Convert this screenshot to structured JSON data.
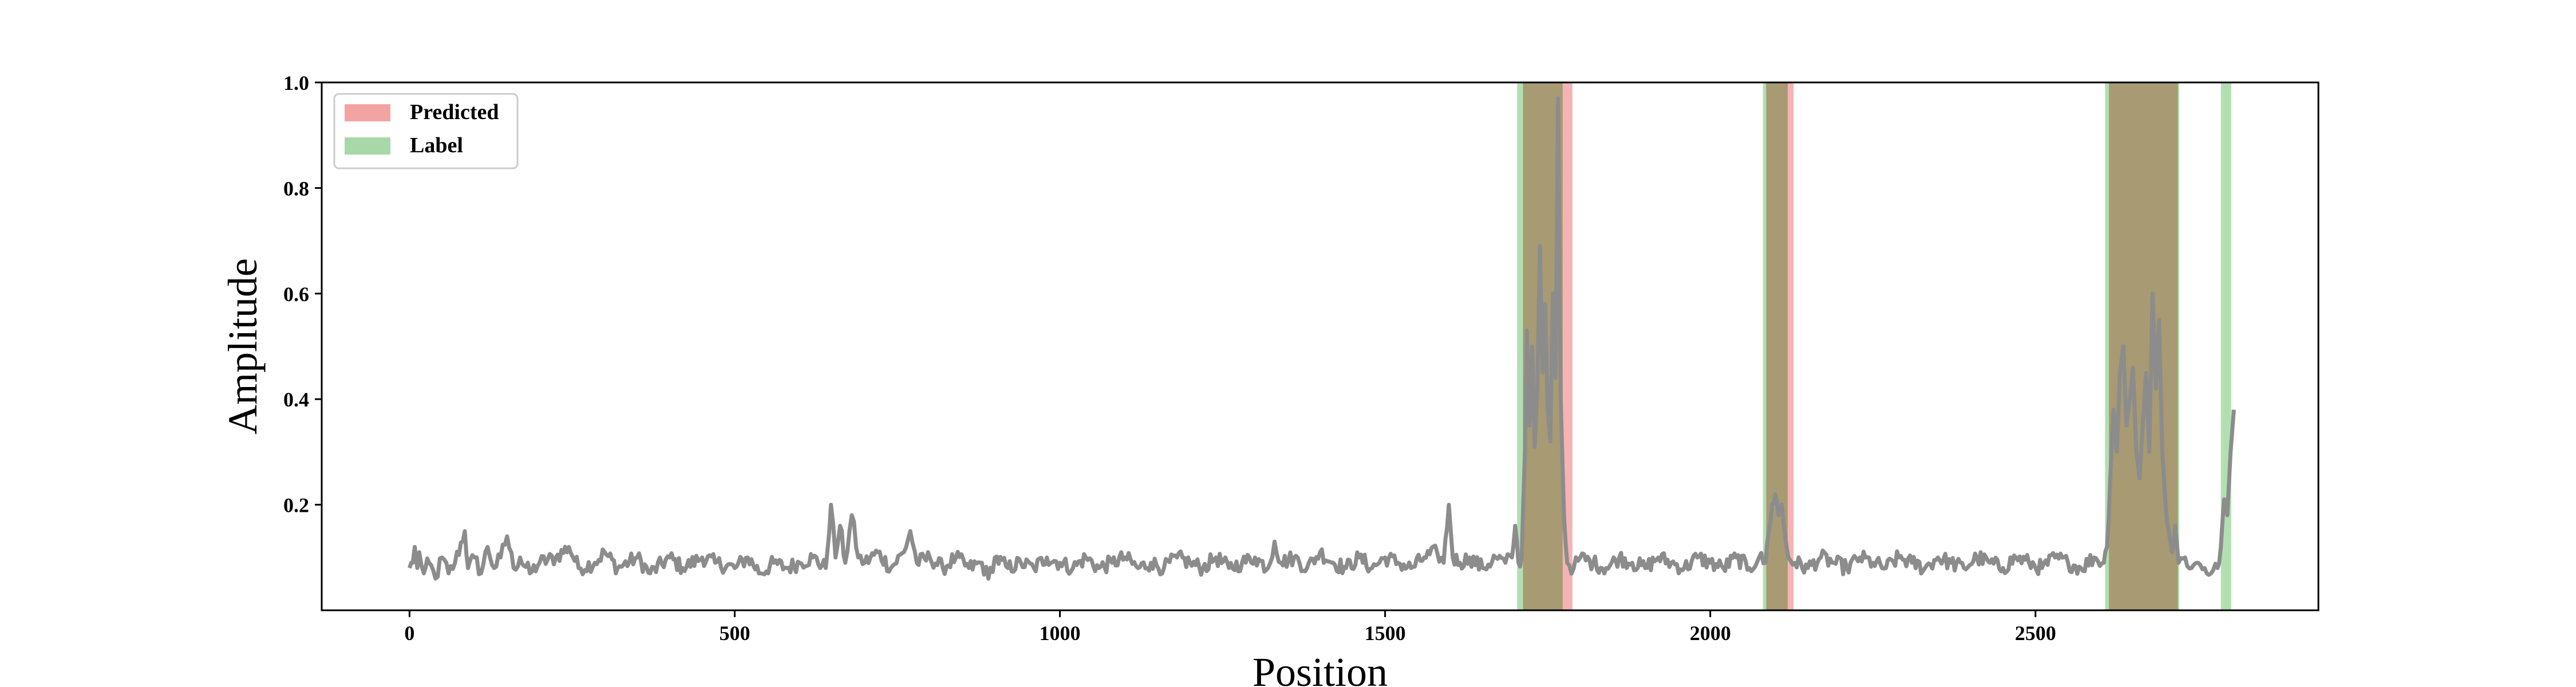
{
  "chart_data": {
    "type": "line",
    "title": "",
    "xlabel": "Position",
    "ylabel": "Amplitude",
    "xlim": [
      -135,
      2935
    ],
    "ylim": [
      0.0,
      1.0
    ],
    "x_ticks": [
      0,
      500,
      1000,
      1500,
      2000,
      2500
    ],
    "y_ticks": [
      0.2,
      0.4,
      0.6,
      0.8,
      1.0
    ],
    "y_tick_labels": [
      "0.2",
      "0.4",
      "0.6",
      "0.8",
      "1.0"
    ],
    "legend": {
      "position": "top-left",
      "entries": [
        {
          "label": "Predicted",
          "color": "#f4a3a3"
        },
        {
          "label": "Label",
          "color": "#a8d8a8"
        }
      ]
    },
    "colors": {
      "signal": "#8c8c8c",
      "predicted": "#f08080",
      "label": "#7fc97f",
      "overlap": "#a89a72",
      "axes": "#000000"
    },
    "predicted_regions": [
      [
        1712,
        1788
      ],
      [
        2086,
        2128
      ],
      [
        2613,
        2719
      ]
    ],
    "label_regions": [
      [
        1703,
        1773
      ],
      [
        2081,
        2119
      ],
      [
        2607,
        2721
      ],
      [
        2785,
        2801
      ]
    ],
    "series": [
      {
        "name": "signal",
        "baseline": 0.085,
        "x_end": 2805,
        "points": [
          [
            0,
            0.08
          ],
          [
            5,
            0.09
          ],
          [
            8,
            0.12
          ],
          [
            12,
            0.08
          ],
          [
            15,
            0.11
          ],
          [
            22,
            0.07
          ],
          [
            30,
            0.09
          ],
          [
            40,
            0.06
          ],
          [
            50,
            0.1
          ],
          [
            60,
            0.07
          ],
          [
            70,
            0.09
          ],
          [
            85,
            0.15
          ],
          [
            90,
            0.08
          ],
          [
            100,
            0.1
          ],
          [
            110,
            0.07
          ],
          [
            120,
            0.12
          ],
          [
            130,
            0.08
          ],
          [
            140,
            0.1
          ],
          [
            150,
            0.14
          ],
          [
            160,
            0.08
          ],
          [
            170,
            0.1
          ],
          [
            185,
            0.07
          ],
          [
            200,
            0.09
          ],
          [
            225,
            0.1
          ],
          [
            245,
            0.12
          ],
          [
            260,
            0.08
          ],
          [
            285,
            0.09
          ],
          [
            300,
            0.11
          ],
          [
            320,
            0.08
          ],
          [
            350,
            0.1
          ],
          [
            370,
            0.07
          ],
          [
            400,
            0.1
          ],
          [
            420,
            0.08
          ],
          [
            450,
            0.1
          ],
          [
            470,
            0.09
          ],
          [
            500,
            0.08
          ],
          [
            520,
            0.1
          ],
          [
            540,
            0.07
          ],
          [
            560,
            0.09
          ],
          [
            580,
            0.08
          ],
          [
            600,
            0.09
          ],
          [
            620,
            0.1
          ],
          [
            640,
            0.08
          ],
          [
            648,
            0.2
          ],
          [
            655,
            0.1
          ],
          [
            662,
            0.16
          ],
          [
            670,
            0.09
          ],
          [
            680,
            0.18
          ],
          [
            690,
            0.1
          ],
          [
            700,
            0.09
          ],
          [
            720,
            0.11
          ],
          [
            740,
            0.08
          ],
          [
            760,
            0.11
          ],
          [
            770,
            0.15
          ],
          [
            780,
            0.09
          ],
          [
            800,
            0.1
          ],
          [
            820,
            0.08
          ],
          [
            840,
            0.1
          ],
          [
            860,
            0.08
          ],
          [
            880,
            0.09
          ],
          [
            890,
            0.06
          ],
          [
            900,
            0.1
          ],
          [
            920,
            0.08
          ],
          [
            940,
            0.09
          ],
          [
            960,
            0.08
          ],
          [
            980,
            0.1
          ],
          [
            1000,
            0.09
          ],
          [
            1020,
            0.08
          ],
          [
            1040,
            0.1
          ],
          [
            1060,
            0.08
          ],
          [
            1080,
            0.09
          ],
          [
            1100,
            0.1
          ],
          [
            1120,
            0.08
          ],
          [
            1140,
            0.09
          ],
          [
            1160,
            0.08
          ],
          [
            1180,
            0.1
          ],
          [
            1200,
            0.09
          ],
          [
            1220,
            0.08
          ],
          [
            1240,
            0.1
          ],
          [
            1260,
            0.08
          ],
          [
            1280,
            0.09
          ],
          [
            1300,
            0.1
          ],
          [
            1320,
            0.08
          ],
          [
            1330,
            0.13
          ],
          [
            1340,
            0.09
          ],
          [
            1360,
            0.1
          ],
          [
            1380,
            0.08
          ],
          [
            1400,
            0.11
          ],
          [
            1420,
            0.09
          ],
          [
            1440,
            0.08
          ],
          [
            1460,
            0.1
          ],
          [
            1480,
            0.08
          ],
          [
            1500,
            0.1
          ],
          [
            1520,
            0.09
          ],
          [
            1540,
            0.08
          ],
          [
            1560,
            0.1
          ],
          [
            1580,
            0.11
          ],
          [
            1590,
            0.09
          ],
          [
            1598,
            0.2
          ],
          [
            1604,
            0.1
          ],
          [
            1615,
            0.09
          ],
          [
            1630,
            0.1
          ],
          [
            1650,
            0.08
          ],
          [
            1670,
            0.1
          ],
          [
            1685,
            0.09
          ],
          [
            1695,
            0.1
          ],
          [
            1700,
            0.16
          ],
          [
            1705,
            0.09
          ],
          [
            1710,
            0.1
          ],
          [
            1715,
            0.3
          ],
          [
            1718,
            0.53
          ],
          [
            1722,
            0.35
          ],
          [
            1726,
            0.5
          ],
          [
            1730,
            0.31
          ],
          [
            1734,
            0.42
          ],
          [
            1738,
            0.69
          ],
          [
            1742,
            0.45
          ],
          [
            1746,
            0.58
          ],
          [
            1750,
            0.38
          ],
          [
            1754,
            0.32
          ],
          [
            1758,
            0.6
          ],
          [
            1762,
            0.44
          ],
          [
            1766,
            0.97
          ],
          [
            1770,
            0.4
          ],
          [
            1775,
            0.18
          ],
          [
            1780,
            0.09
          ],
          [
            1790,
            0.08
          ],
          [
            1800,
            0.1
          ],
          [
            1820,
            0.09
          ],
          [
            1840,
            0.08
          ],
          [
            1860,
            0.1
          ],
          [
            1880,
            0.09
          ],
          [
            1900,
            0.08
          ],
          [
            1920,
            0.1
          ],
          [
            1940,
            0.09
          ],
          [
            1960,
            0.08
          ],
          [
            1980,
            0.1
          ],
          [
            2000,
            0.09
          ],
          [
            2020,
            0.08
          ],
          [
            2040,
            0.1
          ],
          [
            2060,
            0.08
          ],
          [
            2075,
            0.1
          ],
          [
            2085,
            0.09
          ],
          [
            2090,
            0.15
          ],
          [
            2095,
            0.2
          ],
          [
            2100,
            0.22
          ],
          [
            2105,
            0.18
          ],
          [
            2110,
            0.2
          ],
          [
            2115,
            0.14
          ],
          [
            2120,
            0.1
          ],
          [
            2130,
            0.09
          ],
          [
            2150,
            0.08
          ],
          [
            2170,
            0.1
          ],
          [
            2190,
            0.09
          ],
          [
            2210,
            0.08
          ],
          [
            2230,
            0.1
          ],
          [
            2250,
            0.09
          ],
          [
            2270,
            0.08
          ],
          [
            2290,
            0.1
          ],
          [
            2310,
            0.09
          ],
          [
            2330,
            0.08
          ],
          [
            2350,
            0.1
          ],
          [
            2370,
            0.09
          ],
          [
            2390,
            0.08
          ],
          [
            2410,
            0.1
          ],
          [
            2430,
            0.09
          ],
          [
            2450,
            0.08
          ],
          [
            2470,
            0.1
          ],
          [
            2490,
            0.09
          ],
          [
            2510,
            0.08
          ],
          [
            2530,
            0.1
          ],
          [
            2550,
            0.09
          ],
          [
            2570,
            0.08
          ],
          [
            2590,
            0.1
          ],
          [
            2605,
            0.09
          ],
          [
            2610,
            0.12
          ],
          [
            2615,
            0.25
          ],
          [
            2620,
            0.38
          ],
          [
            2625,
            0.3
          ],
          [
            2630,
            0.45
          ],
          [
            2635,
            0.5
          ],
          [
            2640,
            0.35
          ],
          [
            2645,
            0.4
          ],
          [
            2650,
            0.46
          ],
          [
            2655,
            0.3
          ],
          [
            2660,
            0.25
          ],
          [
            2665,
            0.35
          ],
          [
            2670,
            0.45
          ],
          [
            2675,
            0.3
          ],
          [
            2680,
            0.6
          ],
          [
            2685,
            0.42
          ],
          [
            2690,
            0.55
          ],
          [
            2695,
            0.3
          ],
          [
            2700,
            0.2
          ],
          [
            2705,
            0.15
          ],
          [
            2710,
            0.11
          ],
          [
            2715,
            0.16
          ],
          [
            2720,
            0.09
          ],
          [
            2730,
            0.1
          ],
          [
            2740,
            0.08
          ],
          [
            2750,
            0.09
          ],
          [
            2760,
            0.08
          ],
          [
            2770,
            0.07
          ],
          [
            2780,
            0.08
          ],
          [
            2785,
            0.12
          ],
          [
            2790,
            0.21
          ],
          [
            2795,
            0.18
          ],
          [
            2800,
            0.3
          ],
          [
            2805,
            0.38
          ]
        ]
      }
    ]
  }
}
